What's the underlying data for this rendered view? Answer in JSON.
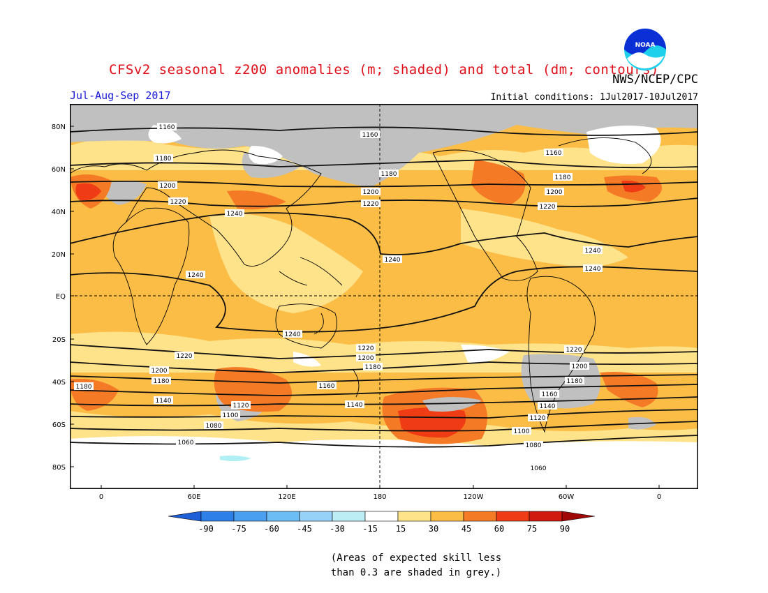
{
  "header": {
    "title": "CFSv2 seasonal z200 anomalies (m; shaded) and total (dm; contours)",
    "agency": "NWS/NCEP/CPC",
    "period": "Jul-Aug-Sep 2017",
    "initial_conditions": "Initial conditions: 1Jul2017-10Jul2017",
    "logo_text": "NOAA"
  },
  "map": {
    "lat_labels": [
      "80N",
      "60N",
      "40N",
      "20N",
      "EQ",
      "20S",
      "40S",
      "60S",
      "80S"
    ],
    "lon_labels": [
      "0",
      "60E",
      "120E",
      "180",
      "120W",
      "60W",
      "0"
    ],
    "contour_labels": [
      "1060",
      "1080",
      "1100",
      "1120",
      "1140",
      "1160",
      "1180",
      "1200",
      "1220",
      "1240"
    ],
    "colors": {
      "grey_low_skill": "#c0c0c0",
      "c15_30": "#ffe38a",
      "c30_45": "#fbbd46",
      "c45_60": "#f57a26",
      "c60_75": "#f03c14",
      "cm15_m30": "#b0f0f4"
    }
  },
  "colorbar": {
    "labels": [
      "-90",
      "-75",
      "-60",
      "-45",
      "-30",
      "-15",
      "15",
      "30",
      "45",
      "60",
      "75",
      "90"
    ],
    "colors": [
      "#1e5fd8",
      "#2e7fe8",
      "#4aa0f0",
      "#6cbcf6",
      "#96d2f8",
      "#bcecf4",
      "#ffffff",
      "#ffe38a",
      "#fbbd46",
      "#f57a26",
      "#f03c14",
      "#d01a10",
      "#a00808"
    ]
  },
  "note": {
    "line1": "(Areas of expected skill less",
    "line2": "than 0.3 are shaded in grey.)"
  }
}
